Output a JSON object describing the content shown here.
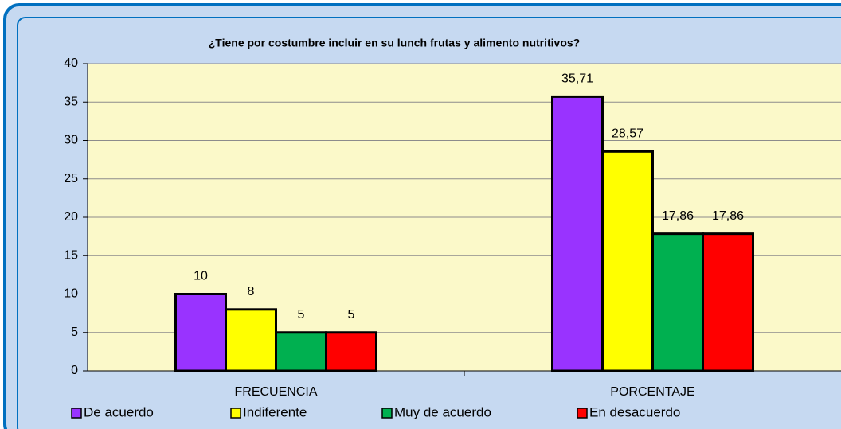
{
  "chart_data": {
    "type": "bar",
    "title": "¿Tiene por costumbre incluir en su lunch frutas  y alimento nutritivos?",
    "categories": [
      "FRECUENCIA",
      "PORCENTAJE"
    ],
    "series": [
      {
        "name": "De acuerdo",
        "color": "#9933ff",
        "values": [
          10,
          35.71
        ],
        "value_labels": [
          "10",
          "35,71"
        ]
      },
      {
        "name": "Indiferente",
        "color": "#ffff00",
        "values": [
          8,
          28.57
        ],
        "value_labels": [
          "8",
          "28,57"
        ]
      },
      {
        "name": "Muy de acuerdo",
        "color": "#00b050",
        "values": [
          5,
          17.86
        ],
        "value_labels": [
          "5",
          "17,86"
        ]
      },
      {
        "name": "En desacuerdo",
        "color": "#ff0000",
        "values": [
          5,
          17.86
        ],
        "value_labels": [
          "5",
          "17,86"
        ]
      }
    ],
    "ylim": [
      0,
      40
    ],
    "yticks": [
      0,
      5,
      10,
      15,
      20,
      25,
      30,
      35,
      40
    ],
    "grid": true,
    "legend": "bottom"
  }
}
